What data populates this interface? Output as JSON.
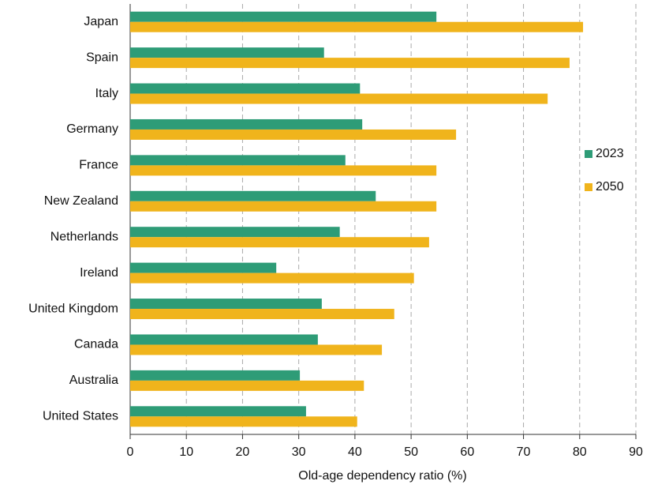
{
  "chart_data": {
    "type": "hbar",
    "x_label": "Old-age dependency ratio (%)",
    "categories": [
      "Japan",
      "Spain",
      "Italy",
      "Germany",
      "France",
      "New Zealand",
      "Netherlands",
      "Ireland",
      "United Kingdom",
      "Canada",
      "Australia",
      "United States"
    ],
    "series": [
      {
        "name": "2023",
        "color": "#2e9c77",
        "values": [
          54.5,
          34.5,
          40.9,
          41.3,
          38.3,
          43.7,
          37.3,
          26.0,
          34.1,
          33.4,
          30.2,
          31.3
        ]
      },
      {
        "name": "2050",
        "color": "#f0b41c",
        "values": [
          80.6,
          78.2,
          74.3,
          58.0,
          54.5,
          54.5,
          53.2,
          50.5,
          47.0,
          44.8,
          41.6,
          40.4
        ]
      }
    ],
    "xlim": [
      0,
      90
    ],
    "xticks": [
      0,
      10,
      20,
      30,
      40,
      50,
      60,
      70,
      80,
      90
    ],
    "grid": true,
    "legend": "right"
  }
}
